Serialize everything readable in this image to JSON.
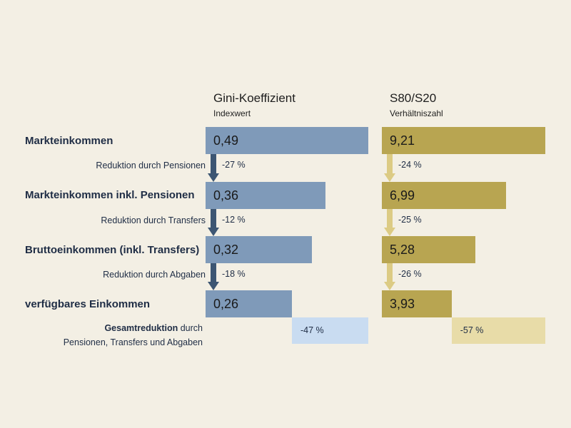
{
  "chart_data": {
    "type": "bar",
    "title": "",
    "categories": [
      "Markteinkommen",
      "Markteinkommen inkl. Pensionen",
      "Bruttoeinkommen (inkl. Transfers)",
      "verfügbares Einkommen"
    ],
    "series": [
      {
        "name": "Gini-Koeffizient",
        "subtitle": "Indexwert",
        "values": [
          0.49,
          0.36,
          0.32,
          0.26
        ],
        "value_labels": [
          "0,49",
          "0,36",
          "0,32",
          "0,26"
        ],
        "reductions": [
          "-27 %",
          "-12 %",
          "-18 %"
        ],
        "total_reduction": "-47 %",
        "color": "#7f9ab9",
        "arrow_color": "#3d5673",
        "total_color": "#c9dcf1"
      },
      {
        "name": "S80/S20",
        "subtitle": "Verhältniszahl",
        "values": [
          9.21,
          6.99,
          5.28,
          3.93
        ],
        "value_labels": [
          "9,21",
          "6,99",
          "5,28",
          "3,93"
        ],
        "reductions": [
          "-24 %",
          "-25 %",
          "-26 %"
        ],
        "total_reduction": "-57 %",
        "color": "#b8a551",
        "arrow_color": "#dccb84",
        "total_color": "#e8dca8"
      }
    ],
    "reduction_labels": [
      "Reduktion durch Pensionen",
      "Reduktion durch Transfers",
      "Reduktion durch Abgaben"
    ],
    "total_label_bold": "Gesamtreduktion",
    "total_label_rest1": " durch",
    "total_label_line2": "Pensionen, Transfers und Abgaben"
  }
}
